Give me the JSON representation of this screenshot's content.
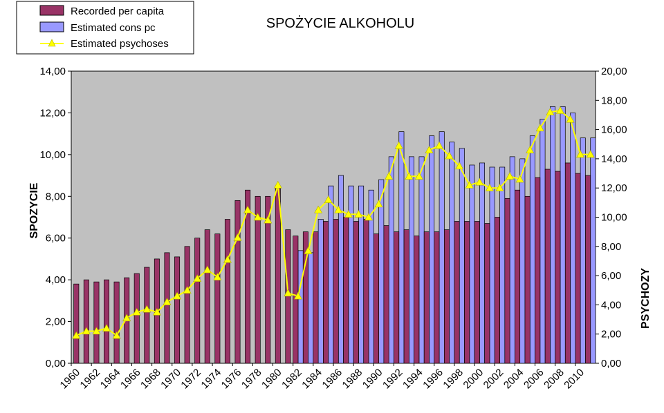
{
  "chart_data": {
    "type": "bar",
    "title": "SPOŻYCIE ALKOHOLU",
    "ylabel": "SPOZYCIE",
    "y2label": "PSYCHOZY",
    "ylim": [
      0,
      14
    ],
    "y2lim": [
      0,
      20
    ],
    "y_ticks": [
      "0,00",
      "2,00",
      "4,00",
      "6,00",
      "8,00",
      "10,00",
      "12,00",
      "14,00"
    ],
    "y2_ticks": [
      "0,00",
      "2,00",
      "4,00",
      "6,00",
      "8,00",
      "10,00",
      "12,00",
      "14,00",
      "16,00",
      "18,00",
      "20,00"
    ],
    "x_tick_labels": [
      "1960",
      "1962",
      "1964",
      "1966",
      "1968",
      "1970",
      "1972",
      "1974",
      "1976",
      "1978",
      "1980",
      "1982",
      "1984",
      "1986",
      "1988",
      "1990",
      "1992",
      "1994",
      "1996",
      "1998",
      "2000",
      "2002",
      "2004",
      "2006",
      "2008",
      "2010"
    ],
    "legend_placement": "top-left",
    "grid": false,
    "plot_background": "#c0c0c0",
    "categories": [
      1960,
      1961,
      1962,
      1963,
      1964,
      1965,
      1966,
      1967,
      1968,
      1969,
      1970,
      1971,
      1972,
      1973,
      1974,
      1975,
      1976,
      1977,
      1978,
      1979,
      1980,
      1981,
      1982,
      1983,
      1984,
      1985,
      1986,
      1987,
      1988,
      1989,
      1990,
      1991,
      1992,
      1993,
      1994,
      1995,
      1996,
      1997,
      1998,
      1999,
      2000,
      2001,
      2002,
      2003,
      2004,
      2005,
      2006,
      2007,
      2008,
      2009,
      2010,
      2011
    ],
    "series": [
      {
        "name": "Recorded per capita",
        "kind": "bar",
        "axis": "left",
        "color": "#993366",
        "values": [
          3.8,
          4.0,
          3.9,
          4.0,
          3.9,
          4.1,
          4.3,
          4.6,
          5.0,
          5.3,
          5.1,
          5.6,
          6.0,
          6.4,
          6.2,
          6.9,
          7.8,
          8.3,
          8.0,
          8.0,
          8.4,
          6.4,
          6.1,
          6.3,
          6.3,
          6.8,
          6.9,
          7.0,
          6.8,
          6.9,
          6.2,
          6.6,
          6.3,
          6.4,
          6.1,
          6.3,
          6.3,
          6.4,
          6.8,
          6.8,
          6.8,
          6.7,
          7.0,
          7.9,
          8.3,
          8.0,
          8.9,
          9.3,
          9.2,
          9.6,
          9.1,
          9.0
        ]
      },
      {
        "name": "Estimated cons pc",
        "kind": "bar",
        "axis": "left",
        "color": "#9999ff",
        "values": [
          null,
          null,
          null,
          null,
          null,
          null,
          null,
          null,
          null,
          null,
          null,
          null,
          null,
          null,
          null,
          null,
          null,
          null,
          null,
          null,
          null,
          null,
          5.4,
          5.3,
          6.9,
          8.5,
          9.0,
          8.5,
          8.5,
          8.3,
          8.8,
          9.9,
          11.1,
          9.9,
          9.9,
          10.9,
          11.1,
          10.6,
          10.3,
          9.5,
          9.6,
          9.4,
          9.4,
          9.9,
          9.8,
          10.9,
          11.7,
          12.3,
          12.3,
          12.0,
          10.8,
          10.8
        ]
      },
      {
        "name": "Estimated psychoses",
        "kind": "line",
        "axis": "right",
        "color": "#ffff00",
        "values": [
          1.9,
          2.2,
          2.2,
          2.4,
          1.9,
          3.1,
          3.5,
          3.7,
          3.5,
          4.2,
          4.6,
          5.0,
          5.8,
          6.4,
          5.9,
          7.1,
          8.6,
          10.5,
          10.0,
          9.8,
          12.2,
          4.8,
          4.6,
          7.7,
          10.5,
          11.2,
          10.5,
          10.2,
          10.2,
          10.0,
          10.9,
          12.8,
          14.9,
          12.8,
          12.8,
          14.6,
          14.9,
          14.2,
          13.5,
          12.2,
          12.4,
          12.0,
          12.0,
          12.8,
          12.6,
          14.6,
          16.1,
          17.2,
          17.3,
          16.7,
          14.3,
          14.3
        ]
      }
    ]
  }
}
